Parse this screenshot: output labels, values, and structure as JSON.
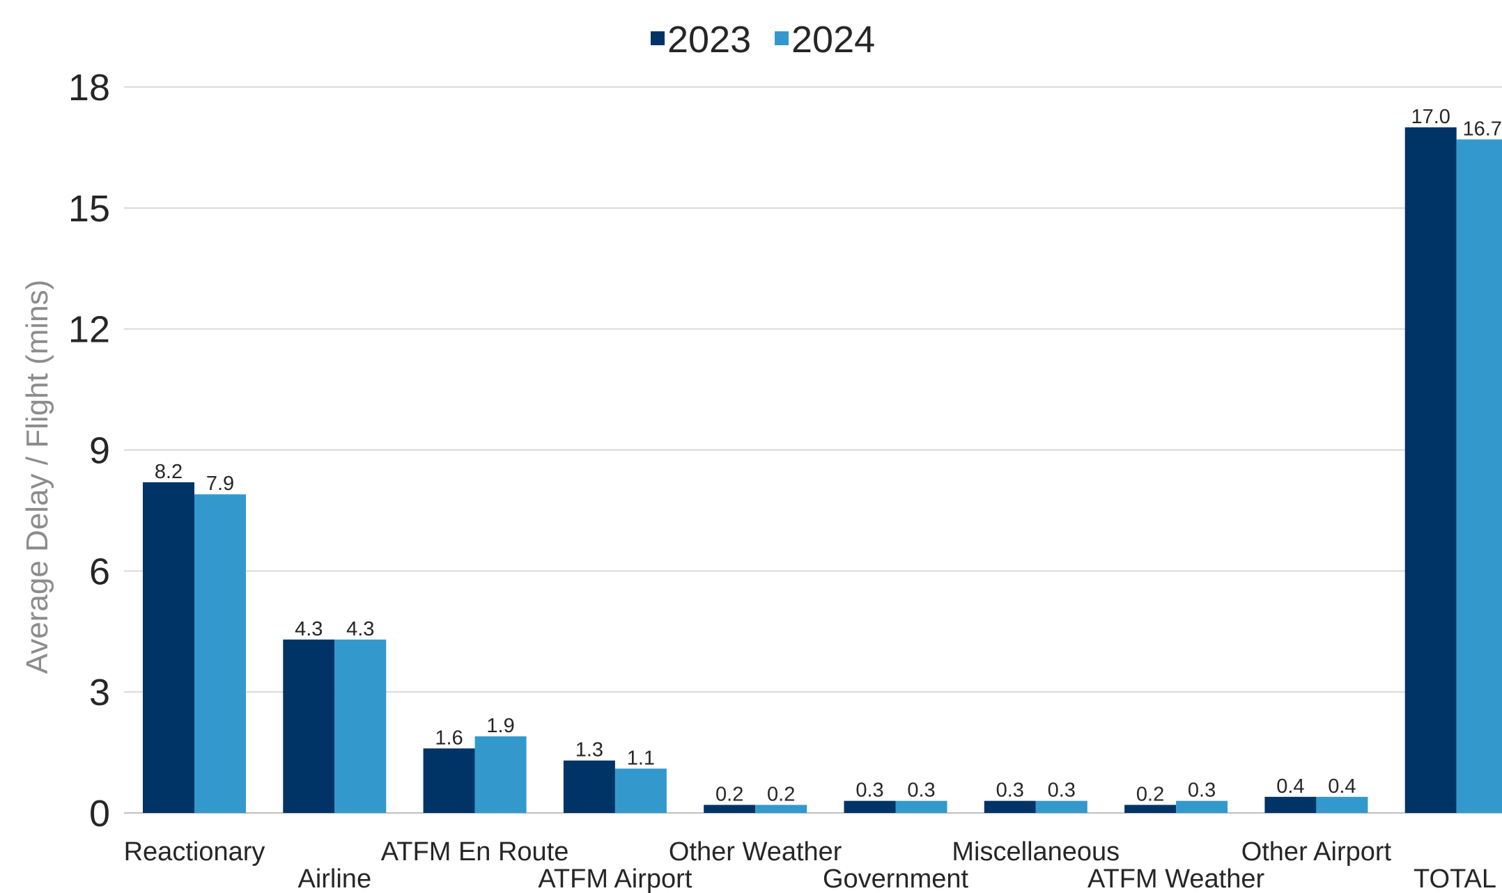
{
  "chart_data": {
    "type": "bar",
    "title": "",
    "xlabel": "",
    "ylabel": "Average Delay / Flight (mins)",
    "ylim": [
      0,
      18
    ],
    "yticks": [
      0,
      3,
      6,
      9,
      12,
      15,
      18
    ],
    "grid": true,
    "legend_position": "top-center",
    "categories": [
      "Reactionary",
      "Airline",
      "ATFM En Route",
      "ATFM Airport",
      "Other Weather",
      "Government",
      "Miscellaneous",
      "ATFM Weather",
      "Other Airport",
      "TOTAL"
    ],
    "series": [
      {
        "name": "2023",
        "color": "#003366",
        "values": [
          8.2,
          4.3,
          1.6,
          1.3,
          0.2,
          0.3,
          0.3,
          0.2,
          0.4,
          17.0
        ],
        "labels": [
          "8.2",
          "4.3",
          "1.6",
          "1.3",
          "0.2",
          "0.3",
          "0.3",
          "0.2",
          "0.4",
          "17.0"
        ]
      },
      {
        "name": "2024",
        "color": "#3399CC",
        "values": [
          7.9,
          4.3,
          1.9,
          1.1,
          0.2,
          0.3,
          0.3,
          0.3,
          0.4,
          16.7
        ],
        "labels": [
          "7.9",
          "4.3",
          "1.9",
          "1.1",
          "0.2",
          "0.3",
          "0.3",
          "0.3",
          "0.4",
          "16.7"
        ]
      }
    ]
  }
}
